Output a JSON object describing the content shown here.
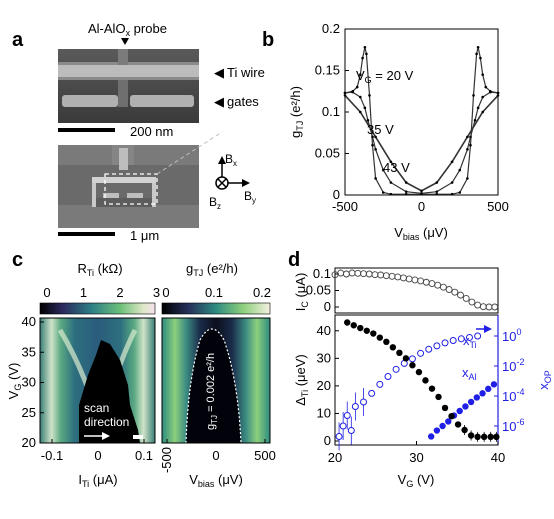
{
  "panels": {
    "a": {
      "label": "a",
      "probe_label_prefix": "Al-AlO",
      "probe_label_sub": "x",
      "probe_label_suffix": " probe",
      "ti_wire_label": "Ti wire",
      "gates_label": "gates",
      "scale_top": "200 nm",
      "scale_bottom": "1 μm",
      "axes": {
        "bx": "B",
        "bx_sub": "x",
        "by": "B",
        "by_sub": "y",
        "bz": "B",
        "bz_sub": "z"
      }
    },
    "b": {
      "label": "b",
      "ylabel_main": "g",
      "ylabel_sub": "TJ",
      "ylabel_unit": " (e²/h)",
      "xlabel_main": "V",
      "xlabel_sub": "bias",
      "xlabel_unit": " (μV)",
      "yticks": [
        "0",
        "0.05",
        "0.1",
        "0.15",
        "0.2"
      ],
      "xticks": [
        "-500",
        "0",
        "500"
      ],
      "curve_labels": [
        {
          "pre": "V",
          "sub": "G",
          "post": " = 20 V"
        },
        {
          "pre": "35 V",
          "sub": "",
          "post": ""
        },
        {
          "pre": "43 V",
          "sub": "",
          "post": ""
        }
      ]
    },
    "c": {
      "label": "c",
      "left": {
        "title_main": "R",
        "title_sub": "Ti",
        "title_unit": " (kΩ)",
        "cbar_ticks": [
          "0",
          "1",
          "2",
          "3"
        ],
        "xticks": [
          "-0.1",
          "0",
          "0.1"
        ],
        "xlabel_main": "I",
        "xlabel_sub": "Ti",
        "xlabel_unit": " (μA)",
        "annotation_line1": "scan",
        "annotation_line2": "direction"
      },
      "right": {
        "title_main": "g",
        "title_sub": "TJ",
        "title_unit": " (e²/h)",
        "cbar_ticks": [
          "0",
          "0.1",
          "0.2"
        ],
        "xticks": [
          "-500",
          "0",
          "500"
        ],
        "xlabel_main": "V",
        "xlabel_sub": "bias",
        "xlabel_unit": " (μV)",
        "contour_label": "g",
        "contour_label_sub": "TJ",
        "contour_label_rest": " = 0.002 e²/h"
      },
      "yticks": [
        "20",
        "25",
        "30",
        "35",
        "40"
      ],
      "ylabel_main": "V",
      "ylabel_sub": "G",
      "ylabel_unit": " (V)"
    },
    "d": {
      "label": "d",
      "top_ylabel_main": "I",
      "top_ylabel_sub": "C",
      "top_ylabel_unit": " (μA)",
      "top_yticks": [
        "0",
        "0.05",
        "0.1"
      ],
      "bottom_ylabel_main": "Δ",
      "bottom_ylabel_sub": "Ti",
      "bottom_ylabel_unit": " (μeV)",
      "bottom_yticks": [
        "0",
        "10",
        "20",
        "30",
        "40"
      ],
      "right_ylabel_main": "x",
      "right_ylabel_sub": "OP",
      "right_yticks": [
        {
          "base": "10",
          "exp": "0"
        },
        {
          "base": "10",
          "exp": "-2"
        },
        {
          "base": "10",
          "exp": "-4"
        },
        {
          "base": "10",
          "exp": "-6"
        }
      ],
      "xticks": [
        "20",
        "30",
        "40"
      ],
      "xlabel_main": "V",
      "xlabel_sub": "G",
      "xlabel_unit": " (V)",
      "legend_xti_main": "x",
      "legend_xti_sub": "Ti",
      "legend_xal_main": "x",
      "legend_xal_sub": "Al",
      "colors": {
        "blue": "#1f1fe6",
        "black": "#000000"
      }
    }
  },
  "chart_data": [
    {
      "type": "line",
      "title": "",
      "xlabel": "V_bias (μV)",
      "ylabel": "g_TJ (e²/h)",
      "xlim": [
        -500,
        500
      ],
      "ylim": [
        0,
        0.2
      ],
      "series": [
        {
          "name": "V_G = 20 V",
          "x": [
            -500,
            -450,
            -420,
            -400,
            -385,
            -370,
            -360,
            -340,
            -320,
            -300,
            -250,
            -200,
            -100,
            0,
            100,
            200,
            250,
            300,
            320,
            340,
            360,
            370,
            385,
            400,
            420,
            450,
            500
          ],
          "values": [
            0.123,
            0.125,
            0.13,
            0.145,
            0.165,
            0.178,
            0.17,
            0.12,
            0.06,
            0.02,
            0.003,
            0.001,
            0.001,
            0.001,
            0.001,
            0.001,
            0.003,
            0.02,
            0.06,
            0.12,
            0.17,
            0.178,
            0.165,
            0.145,
            0.13,
            0.125,
            0.123
          ]
        },
        {
          "name": "35 V",
          "x": [
            -500,
            -450,
            -400,
            -370,
            -350,
            -320,
            -300,
            -250,
            -200,
            -100,
            0,
            100,
            200,
            250,
            300,
            320,
            350,
            370,
            400,
            450,
            500
          ],
          "values": [
            0.123,
            0.124,
            0.118,
            0.105,
            0.09,
            0.07,
            0.055,
            0.03,
            0.015,
            0.004,
            0.002,
            0.004,
            0.015,
            0.03,
            0.055,
            0.07,
            0.09,
            0.105,
            0.118,
            0.124,
            0.123
          ]
        },
        {
          "name": "43 V",
          "x": [
            -500,
            -400,
            -300,
            -200,
            -100,
            0,
            100,
            200,
            300,
            400,
            500
          ],
          "values": [
            0.12,
            0.1,
            0.07,
            0.04,
            0.015,
            0.005,
            0.015,
            0.04,
            0.07,
            0.1,
            0.12
          ]
        }
      ]
    },
    {
      "type": "scatter",
      "title": "",
      "xlabel": "V_G (V)",
      "ylabel": "I_C (μA)",
      "xlim": [
        20,
        40
      ],
      "ylim": [
        0,
        0.12
      ],
      "series": [
        {
          "name": "",
          "x": [
            20,
            20.7,
            21.4,
            22.1,
            22.8,
            23.5,
            24.2,
            24.9,
            25.6,
            26.3,
            27,
            27.7,
            28.4,
            29.1,
            29.8,
            30.5,
            31.2,
            31.9,
            32.6,
            33.3,
            34,
            34.7,
            35.4,
            36.1,
            36.8,
            37.5,
            38.2,
            38.9,
            39.6
          ],
          "values": [
            0.098,
            0.103,
            0.1,
            0.103,
            0.102,
            0.101,
            0.1,
            0.098,
            0.097,
            0.095,
            0.093,
            0.091,
            0.088,
            0.085,
            0.082,
            0.079,
            0.075,
            0.071,
            0.066,
            0.06,
            0.053,
            0.045,
            0.036,
            0.026,
            0.015,
            0.006,
            0.001,
            0.0,
            0.0
          ]
        }
      ]
    },
    {
      "type": "scatter",
      "title": "",
      "xlabel": "V_G (V)",
      "ylabel": "Δ_Ti (μeV)",
      "xlim": [
        20,
        40
      ],
      "ylim": [
        0,
        45
      ],
      "series": [
        {
          "name": "",
          "x": [
            21.5,
            22.3,
            23.1,
            23.9,
            24.7,
            25.5,
            26.3,
            27.1,
            27.9,
            28.7,
            29.5,
            30.3,
            31.1,
            31.9,
            32.7,
            33.5,
            34.3,
            35.1,
            35.9,
            36.7,
            37.5,
            38.3,
            39.1,
            39.8
          ],
          "values": [
            43,
            42,
            41,
            40,
            39,
            37.5,
            36,
            34,
            32,
            30,
            27.5,
            25,
            22,
            19,
            16,
            12,
            9,
            6,
            4,
            2,
            1.5,
            1.5,
            1.5,
            1.5
          ]
        }
      ]
    },
    {
      "type": "scatter",
      "title": "",
      "xlabel": "V_G (V)",
      "ylabel": "x_OP",
      "yscale": "log",
      "ylim": [
        1e-07,
        10
      ],
      "series": [
        {
          "name": "x_Ti",
          "x": [
            20.5,
            21,
            21.5,
            22,
            22.5,
            23.5,
            24.5,
            25.5,
            26.5,
            27.5,
            28.5,
            29.5,
            30.5,
            31.5,
            32.5,
            33.5,
            34.5,
            35.5,
            36.5,
            37.5
          ],
          "values": [
            2e-07,
            1e-06,
            5e-06,
            5e-07,
            2e-05,
            4e-05,
            0.00015,
            0.0006,
            0.002,
            0.006,
            0.015,
            0.03,
            0.07,
            0.13,
            0.22,
            0.35,
            0.5,
            0.65,
            0.8,
            1
          ]
        },
        {
          "name": "x_Al",
          "x": [
            31.8,
            32.5,
            33.2,
            33.9,
            34.6,
            35.3,
            36,
            36.7,
            37.4,
            38.1,
            38.8,
            39.5
          ],
          "values": [
            2e-07,
            5e-07,
            1e-06,
            2e-06,
            5e-06,
            1e-05,
            2e-05,
            4e-05,
            8e-05,
            0.00015,
            0.0003,
            0.0006
          ]
        }
      ]
    }
  ]
}
